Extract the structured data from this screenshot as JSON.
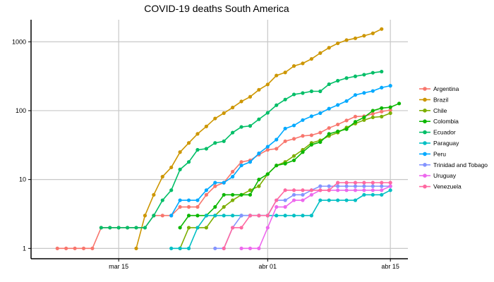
{
  "chart_data": {
    "type": "line",
    "title": "COVID-19 deaths South America",
    "xlabel": "",
    "ylabel": "",
    "y_scale": "log10",
    "grid": true,
    "legend_position": "right",
    "x_ticks": [
      "mar 15",
      "abr 01",
      "abr 15"
    ],
    "y_ticks": [
      "1",
      "10",
      "100",
      "1000"
    ],
    "series": [
      {
        "name": "Argentina",
        "color": "#f8766d",
        "points": [
          [
            "2020-03-08",
            1
          ],
          [
            "2020-03-09",
            1
          ],
          [
            "2020-03-10",
            1
          ],
          [
            "2020-03-11",
            1
          ],
          [
            "2020-03-12",
            1
          ],
          [
            "2020-03-13",
            2
          ],
          [
            "2020-03-14",
            2
          ],
          [
            "2020-03-15",
            2
          ],
          [
            "2020-03-16",
            2
          ],
          [
            "2020-03-17",
            2
          ],
          [
            "2020-03-18",
            2
          ],
          [
            "2020-03-19",
            3
          ],
          [
            "2020-03-20",
            3
          ],
          [
            "2020-03-21",
            3
          ],
          [
            "2020-03-22",
            4
          ],
          [
            "2020-03-23",
            4
          ],
          [
            "2020-03-24",
            4
          ],
          [
            "2020-03-25",
            6
          ],
          [
            "2020-03-26",
            8
          ],
          [
            "2020-03-27",
            9
          ],
          [
            "2020-03-28",
            13
          ],
          [
            "2020-03-29",
            18
          ],
          [
            "2020-03-30",
            19
          ],
          [
            "2020-03-31",
            23
          ],
          [
            "2020-04-01",
            27
          ],
          [
            "2020-04-02",
            28
          ],
          [
            "2020-04-03",
            36
          ],
          [
            "2020-04-04",
            39
          ],
          [
            "2020-04-05",
            43
          ],
          [
            "2020-04-06",
            44
          ],
          [
            "2020-04-07",
            48
          ],
          [
            "2020-04-08",
            56
          ],
          [
            "2020-04-09",
            63
          ],
          [
            "2020-04-10",
            72
          ],
          [
            "2020-04-11",
            82
          ],
          [
            "2020-04-12",
            83
          ],
          [
            "2020-04-13",
            90
          ],
          [
            "2020-04-14",
            97
          ],
          [
            "2020-04-15",
            102
          ]
        ]
      },
      {
        "name": "Brazil",
        "color": "#cd9600",
        "points": [
          [
            "2020-03-17",
            1
          ],
          [
            "2020-03-18",
            3
          ],
          [
            "2020-03-19",
            6
          ],
          [
            "2020-03-20",
            11
          ],
          [
            "2020-03-21",
            15
          ],
          [
            "2020-03-22",
            25
          ],
          [
            "2020-03-23",
            34
          ],
          [
            "2020-03-24",
            46
          ],
          [
            "2020-03-25",
            59
          ],
          [
            "2020-03-26",
            77
          ],
          [
            "2020-03-27",
            92
          ],
          [
            "2020-03-28",
            111
          ],
          [
            "2020-03-29",
            136
          ],
          [
            "2020-03-30",
            159
          ],
          [
            "2020-03-31",
            201
          ],
          [
            "2020-04-01",
            240
          ],
          [
            "2020-04-02",
            324
          ],
          [
            "2020-04-03",
            359
          ],
          [
            "2020-04-04",
            445
          ],
          [
            "2020-04-05",
            486
          ],
          [
            "2020-04-06",
            564
          ],
          [
            "2020-04-07",
            686
          ],
          [
            "2020-04-08",
            819
          ],
          [
            "2020-04-09",
            950
          ],
          [
            "2020-04-10",
            1057
          ],
          [
            "2020-04-11",
            1124
          ],
          [
            "2020-04-12",
            1223
          ],
          [
            "2020-04-13",
            1328
          ],
          [
            "2020-04-14",
            1532
          ]
        ]
      },
      {
        "name": "Chile",
        "color": "#7cae00",
        "points": [
          [
            "2020-03-22",
            1
          ],
          [
            "2020-03-23",
            2
          ],
          [
            "2020-03-24",
            2
          ],
          [
            "2020-03-25",
            2
          ],
          [
            "2020-03-26",
            3
          ],
          [
            "2020-03-27",
            4
          ],
          [
            "2020-03-28",
            5
          ],
          [
            "2020-03-29",
            6
          ],
          [
            "2020-03-30",
            7
          ],
          [
            "2020-03-31",
            8
          ],
          [
            "2020-04-01",
            12
          ],
          [
            "2020-04-02",
            16
          ],
          [
            "2020-04-03",
            18
          ],
          [
            "2020-04-04",
            22
          ],
          [
            "2020-04-05",
            27
          ],
          [
            "2020-04-06",
            34
          ],
          [
            "2020-04-07",
            37
          ],
          [
            "2020-04-08",
            43
          ],
          [
            "2020-04-09",
            48
          ],
          [
            "2020-04-10",
            57
          ],
          [
            "2020-04-11",
            65
          ],
          [
            "2020-04-12",
            73
          ],
          [
            "2020-04-13",
            80
          ],
          [
            "2020-04-14",
            82
          ],
          [
            "2020-04-15",
            92
          ]
        ]
      },
      {
        "name": "Colombia",
        "color": "#0cb702",
        "points": [
          [
            "2020-03-22",
            2
          ],
          [
            "2020-03-23",
            3
          ],
          [
            "2020-03-24",
            3
          ],
          [
            "2020-03-25",
            3
          ],
          [
            "2020-03-26",
            4
          ],
          [
            "2020-03-27",
            6
          ],
          [
            "2020-03-28",
            6
          ],
          [
            "2020-03-29",
            6
          ],
          [
            "2020-03-30",
            6
          ],
          [
            "2020-03-31",
            10
          ],
          [
            "2020-04-01",
            12
          ],
          [
            "2020-04-02",
            16
          ],
          [
            "2020-04-03",
            17
          ],
          [
            "2020-04-04",
            19
          ],
          [
            "2020-04-05",
            25
          ],
          [
            "2020-04-06",
            32
          ],
          [
            "2020-04-07",
            35
          ],
          [
            "2020-04-08",
            46
          ],
          [
            "2020-04-09",
            50
          ],
          [
            "2020-04-10",
            54
          ],
          [
            "2020-04-11",
            69
          ],
          [
            "2020-04-12",
            80
          ],
          [
            "2020-04-13",
            100
          ],
          [
            "2020-04-14",
            109
          ],
          [
            "2020-04-15",
            112
          ],
          [
            "2020-04-16",
            127
          ]
        ]
      },
      {
        "name": "Ecuador",
        "color": "#00be67",
        "points": [
          [
            "2020-03-13",
            2
          ],
          [
            "2020-03-14",
            2
          ],
          [
            "2020-03-15",
            2
          ],
          [
            "2020-03-16",
            2
          ],
          [
            "2020-03-17",
            2
          ],
          [
            "2020-03-18",
            2
          ],
          [
            "2020-03-19",
            3
          ],
          [
            "2020-03-20",
            5
          ],
          [
            "2020-03-21",
            7
          ],
          [
            "2020-03-22",
            14
          ],
          [
            "2020-03-23",
            18
          ],
          [
            "2020-03-24",
            27
          ],
          [
            "2020-03-25",
            28
          ],
          [
            "2020-03-26",
            34
          ],
          [
            "2020-03-27",
            36
          ],
          [
            "2020-03-28",
            48
          ],
          [
            "2020-03-29",
            58
          ],
          [
            "2020-03-30",
            60
          ],
          [
            "2020-03-31",
            75
          ],
          [
            "2020-04-01",
            93
          ],
          [
            "2020-04-02",
            120
          ],
          [
            "2020-04-03",
            145
          ],
          [
            "2020-04-04",
            172
          ],
          [
            "2020-04-05",
            180
          ],
          [
            "2020-04-06",
            191
          ],
          [
            "2020-04-07",
            191
          ],
          [
            "2020-04-08",
            242
          ],
          [
            "2020-04-09",
            272
          ],
          [
            "2020-04-10",
            297
          ],
          [
            "2020-04-11",
            315
          ],
          [
            "2020-04-12",
            333
          ],
          [
            "2020-04-13",
            355
          ],
          [
            "2020-04-14",
            369
          ]
        ]
      },
      {
        "name": "Paraguay",
        "color": "#00bfc4",
        "points": [
          [
            "2020-03-21",
            1
          ],
          [
            "2020-03-22",
            1
          ],
          [
            "2020-03-23",
            1
          ],
          [
            "2020-03-24",
            2
          ],
          [
            "2020-03-25",
            3
          ],
          [
            "2020-03-26",
            3
          ],
          [
            "2020-03-27",
            3
          ],
          [
            "2020-03-28",
            3
          ],
          [
            "2020-03-29",
            3
          ],
          [
            "2020-03-30",
            3
          ],
          [
            "2020-03-31",
            3
          ],
          [
            "2020-04-01",
            3
          ],
          [
            "2020-04-02",
            3
          ],
          [
            "2020-04-03",
            3
          ],
          [
            "2020-04-04",
            3
          ],
          [
            "2020-04-05",
            3
          ],
          [
            "2020-04-06",
            3
          ],
          [
            "2020-04-07",
            5
          ],
          [
            "2020-04-08",
            5
          ],
          [
            "2020-04-09",
            5
          ],
          [
            "2020-04-10",
            5
          ],
          [
            "2020-04-11",
            5
          ],
          [
            "2020-04-12",
            6
          ],
          [
            "2020-04-13",
            6
          ],
          [
            "2020-04-14",
            6
          ],
          [
            "2020-04-15",
            7
          ]
        ]
      },
      {
        "name": "Peru",
        "color": "#00a9ff",
        "points": [
          [
            "2020-03-21",
            3
          ],
          [
            "2020-03-22",
            5
          ],
          [
            "2020-03-23",
            5
          ],
          [
            "2020-03-24",
            5
          ],
          [
            "2020-03-25",
            7
          ],
          [
            "2020-03-26",
            9
          ],
          [
            "2020-03-27",
            9
          ],
          [
            "2020-03-28",
            11
          ],
          [
            "2020-03-29",
            16
          ],
          [
            "2020-03-30",
            18
          ],
          [
            "2020-03-31",
            24
          ],
          [
            "2020-04-01",
            30
          ],
          [
            "2020-04-02",
            38
          ],
          [
            "2020-04-03",
            55
          ],
          [
            "2020-04-04",
            61
          ],
          [
            "2020-04-05",
            73
          ],
          [
            "2020-04-06",
            83
          ],
          [
            "2020-04-07",
            92
          ],
          [
            "2020-04-08",
            107
          ],
          [
            "2020-04-09",
            121
          ],
          [
            "2020-04-10",
            138
          ],
          [
            "2020-04-11",
            169
          ],
          [
            "2020-04-12",
            181
          ],
          [
            "2020-04-13",
            193
          ],
          [
            "2020-04-14",
            216
          ],
          [
            "2020-04-15",
            230
          ]
        ]
      },
      {
        "name": "Trinidad and Tobago",
        "color": "#8494ff",
        "points": [
          [
            "2020-03-26",
            1
          ],
          [
            "2020-03-27",
            1
          ],
          [
            "2020-03-28",
            2
          ],
          [
            "2020-03-29",
            3
          ],
          [
            "2020-03-30",
            3
          ],
          [
            "2020-03-31",
            3
          ],
          [
            "2020-04-01",
            3
          ],
          [
            "2020-04-02",
            5
          ],
          [
            "2020-04-03",
            5
          ],
          [
            "2020-04-04",
            6
          ],
          [
            "2020-04-05",
            6
          ],
          [
            "2020-04-06",
            7
          ],
          [
            "2020-04-07",
            8
          ],
          [
            "2020-04-08",
            8
          ],
          [
            "2020-04-09",
            8
          ],
          [
            "2020-04-10",
            8
          ],
          [
            "2020-04-11",
            8
          ],
          [
            "2020-04-12",
            8
          ],
          [
            "2020-04-13",
            8
          ],
          [
            "2020-04-14",
            8
          ],
          [
            "2020-04-15",
            8
          ]
        ]
      },
      {
        "name": "Uruguay",
        "color": "#ed68ed",
        "points": [
          [
            "2020-03-29",
            1
          ],
          [
            "2020-03-30",
            1
          ],
          [
            "2020-03-31",
            1
          ],
          [
            "2020-04-01",
            2
          ],
          [
            "2020-04-02",
            4
          ],
          [
            "2020-04-03",
            4
          ],
          [
            "2020-04-04",
            5
          ],
          [
            "2020-04-05",
            5
          ],
          [
            "2020-04-06",
            6
          ],
          [
            "2020-04-07",
            7
          ],
          [
            "2020-04-08",
            7
          ],
          [
            "2020-04-09",
            7
          ],
          [
            "2020-04-10",
            7
          ],
          [
            "2020-04-11",
            7
          ],
          [
            "2020-04-12",
            7
          ],
          [
            "2020-04-13",
            7
          ],
          [
            "2020-04-14",
            7
          ],
          [
            "2020-04-15",
            8
          ]
        ]
      },
      {
        "name": "Venezuela",
        "color": "#ff68a1",
        "points": [
          [
            "2020-03-27",
            1
          ],
          [
            "2020-03-28",
            2
          ],
          [
            "2020-03-29",
            2
          ],
          [
            "2020-03-30",
            3
          ],
          [
            "2020-03-31",
            3
          ],
          [
            "2020-04-01",
            3
          ],
          [
            "2020-04-02",
            5
          ],
          [
            "2020-04-03",
            7
          ],
          [
            "2020-04-04",
            7
          ],
          [
            "2020-04-05",
            7
          ],
          [
            "2020-04-06",
            7
          ],
          [
            "2020-04-07",
            7
          ],
          [
            "2020-04-08",
            7
          ],
          [
            "2020-04-09",
            9
          ],
          [
            "2020-04-10",
            9
          ],
          [
            "2020-04-11",
            9
          ],
          [
            "2020-04-12",
            9
          ],
          [
            "2020-04-13",
            9
          ],
          [
            "2020-04-14",
            9
          ],
          [
            "2020-04-15",
            9
          ]
        ]
      }
    ]
  }
}
